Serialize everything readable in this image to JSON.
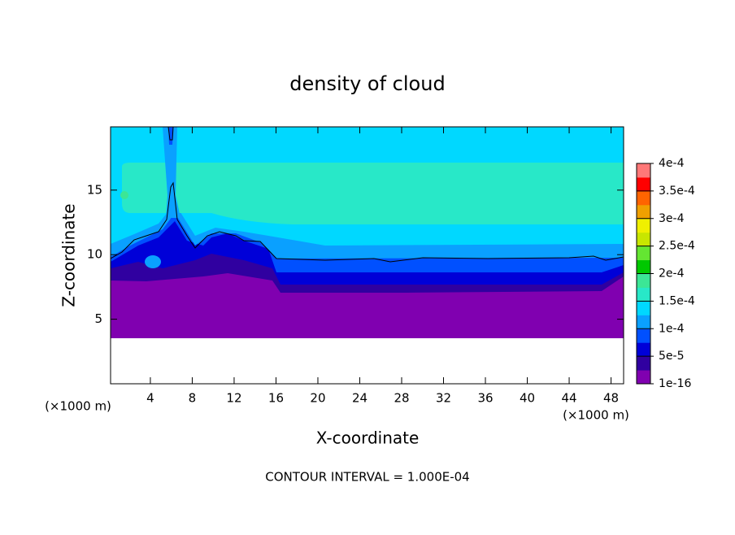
{
  "chart_data": {
    "type": "contour",
    "title": "density of cloud",
    "xlabel": "X-coordinate",
    "ylabel": "Z-coordinate",
    "x_unit_labels": [
      "(×1000 m)",
      "(×1000 m)"
    ],
    "annotation": "CONTOUR INTERVAL = 1.000E-04",
    "xlim": [
      0.2,
      49.2
    ],
    "xticks": [
      4,
      8,
      12,
      16,
      20,
      24,
      28,
      32,
      36,
      40,
      44,
      48
    ],
    "ylim": [
      0,
      19.9
    ],
    "yticks": [
      5,
      10,
      15
    ],
    "colorbar": {
      "lim": [
        0,
        0.0004
      ],
      "ticks": [
        {
          "value": 1e-16,
          "label": "1e-16"
        },
        {
          "value": 5e-05,
          "label": "5e-5"
        },
        {
          "value": 0.0001,
          "label": "1e-4"
        },
        {
          "value": 0.00015,
          "label": "1.5e-4"
        },
        {
          "value": 0.0002,
          "label": "2e-4"
        },
        {
          "value": 0.00025,
          "label": "2.5e-4"
        },
        {
          "value": 0.0003,
          "label": "3e-4"
        },
        {
          "value": 0.00035,
          "label": "3.5e-4"
        },
        {
          "value": 0.0004,
          "label": "4e-4"
        }
      ],
      "colors": [
        "#8000b0",
        "#3000a0",
        "#0000d8",
        "#0050ff",
        "#0aa0ff",
        "#00d8ff",
        "#28e8c8",
        "#3ce696",
        "#00c800",
        "#64e632",
        "#c8e600",
        "#f0f000",
        "#f0a000",
        "#ff6400",
        "#ff0000",
        "#ff7878"
      ]
    }
  }
}
